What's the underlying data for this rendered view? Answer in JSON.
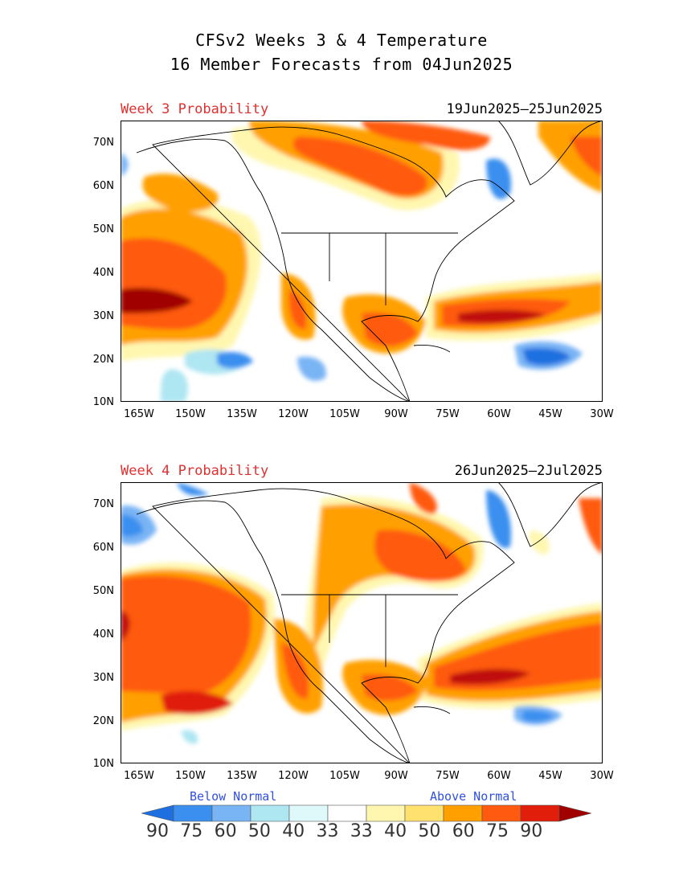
{
  "title_line1": "CFSv2 Weeks 3 & 4 Temperature",
  "title_line2": "16 Member Forecasts from 04Jun2025",
  "panels": [
    {
      "label": "Week 3 Probability",
      "dates": "19Jun2025—25Jun2025"
    },
    {
      "label": "Week 4 Probability",
      "dates": "26Jun2025—2Jul2025"
    }
  ],
  "lat_ticks": [
    "70N",
    "60N",
    "50N",
    "40N",
    "30N",
    "20N",
    "10N"
  ],
  "lon_ticks": [
    "165W",
    "150W",
    "135W",
    "120W",
    "105W",
    "90W",
    "75W",
    "60W",
    "45W",
    "30W"
  ],
  "legend": {
    "below_label": "Below Normal",
    "above_label": "Above Normal",
    "numbers": [
      "90",
      "75",
      "60",
      "50",
      "40",
      "33",
      "33",
      "40",
      "50",
      "60",
      "75",
      "90"
    ],
    "colors": [
      "#1e6fe0",
      "#3b8fef",
      "#79b4f5",
      "#aee6f2",
      "#dff9fb",
      "#ffffff",
      "#fff7b0",
      "#ffe170",
      "#ffa000",
      "#ff5a10",
      "#e01e0a",
      "#a00000"
    ]
  }
}
